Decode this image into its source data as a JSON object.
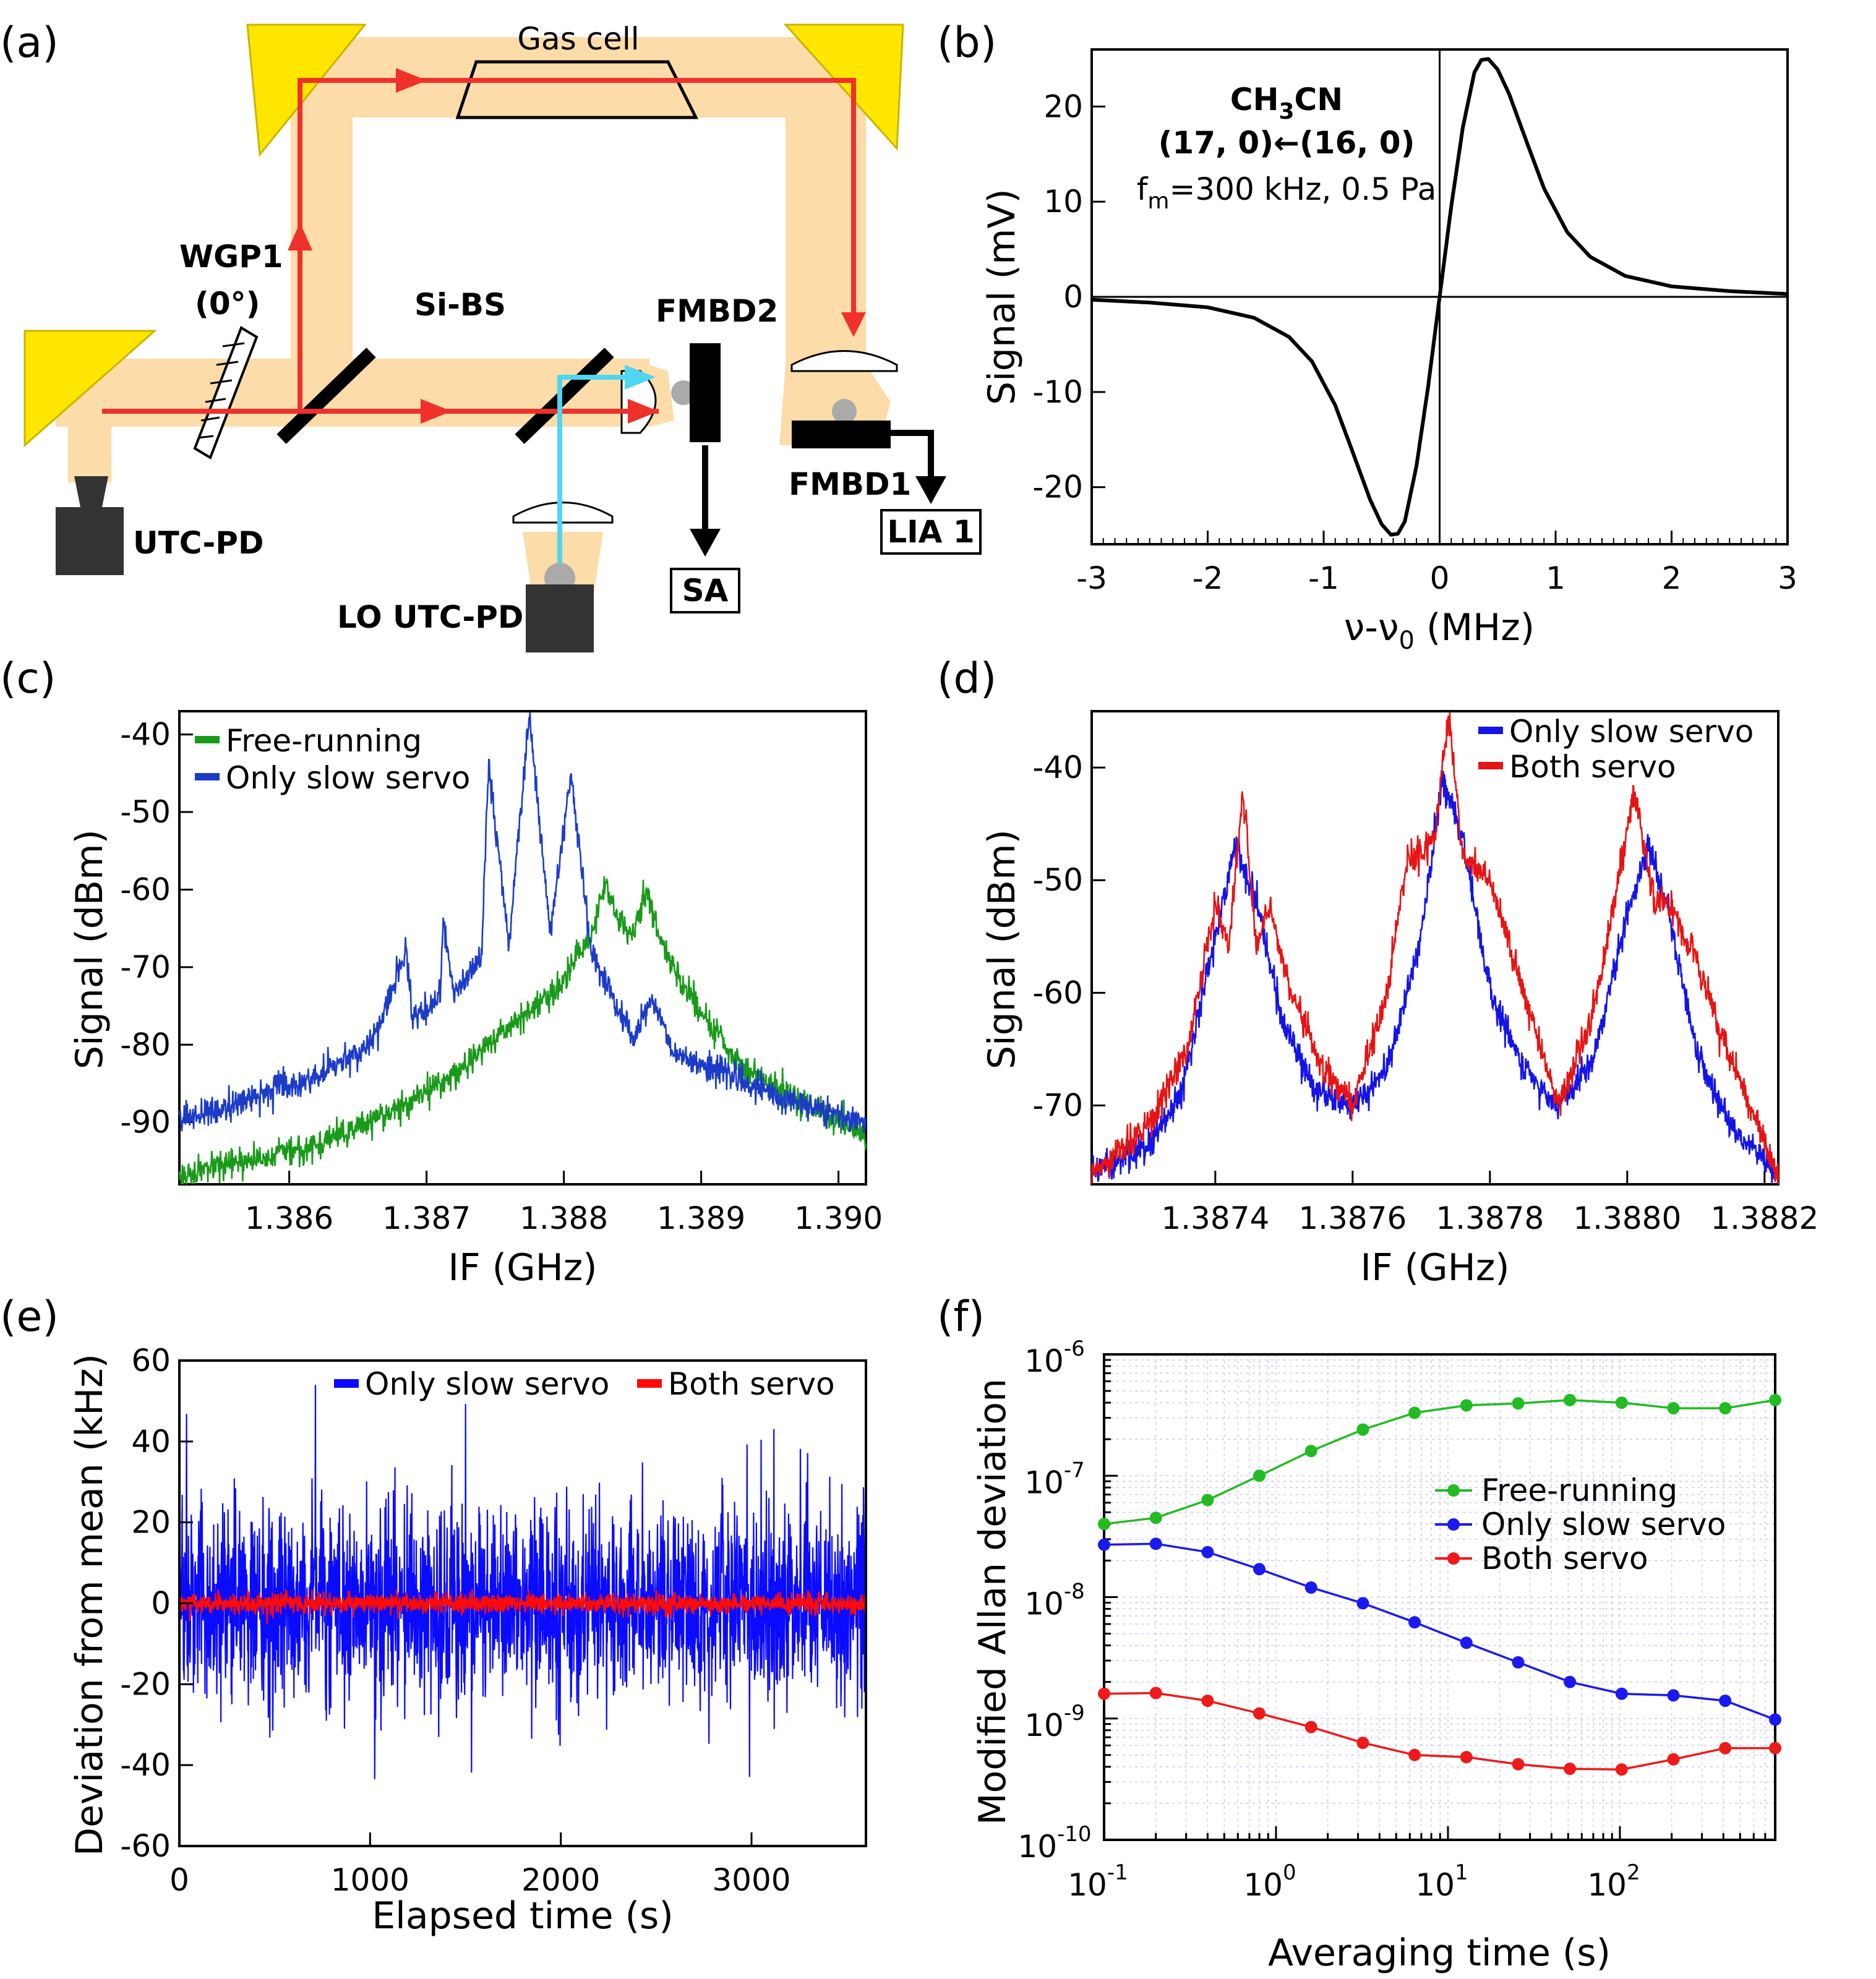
{
  "panels": {
    "a": "(a)",
    "b": "(b)",
    "c": "(c)",
    "d": "(d)",
    "e": "(e)",
    "f": "(f)"
  },
  "diagram": {
    "labels": {
      "gas_cell": "Gas cell",
      "wgp1": "WGP1",
      "wgp1_angle": "(0°)",
      "si_bs": "Si-BS",
      "fmbd2": "FMBD2",
      "fmbd1": "FMBD1",
      "utc_pd": "UTC-PD",
      "lo_utc_pd": "LO UTC-PD",
      "sa": "SA",
      "lia1": "LIA 1"
    },
    "colors": {
      "thz_beam": "#fcdca8",
      "red_beam": "#f0302a",
      "lo_beam": "#4fd6f0",
      "mirror": "#ffe600",
      "detector": "#333333"
    }
  },
  "chart_data": [
    {
      "id": "b",
      "type": "line",
      "title": "",
      "annotation": {
        "molecule_prefix": "CH",
        "molecule_sub": "3",
        "molecule_suffix": "CN",
        "transition": "(17, 0)←(16, 0)",
        "cond_prefix": "f",
        "cond_sub": "m",
        "cond_suffix": "=300 kHz, 0.5 Pa"
      },
      "xlabel": {
        "prefix": "ν-ν",
        "sub": "0",
        "suffix": " (MHz)"
      },
      "ylabel": "Signal (mV)",
      "xlim": [
        -3,
        3
      ],
      "ylim": [
        -26,
        26
      ],
      "xticks": [
        -3,
        -2,
        -1,
        0,
        1,
        2,
        3
      ],
      "xtick_labels": [
        "-3",
        "-2",
        "-1",
        "0",
        "1",
        "2",
        "3"
      ],
      "yticks": [
        -20,
        -10,
        0,
        10,
        20
      ],
      "ytick_labels": [
        "-20",
        "-10",
        "0",
        "10",
        "20"
      ],
      "series": [
        {
          "name": "signal",
          "color": "#000000",
          "x": [
            -3.0,
            -2.5,
            -2.0,
            -1.6,
            -1.3,
            -1.1,
            -0.9,
            -0.75,
            -0.6,
            -0.5,
            -0.42,
            -0.36,
            -0.3,
            -0.2,
            -0.1,
            0.0,
            0.1,
            0.2,
            0.3,
            0.36,
            0.42,
            0.5,
            0.6,
            0.75,
            0.9,
            1.1,
            1.3,
            1.6,
            2.0,
            2.5,
            3.0
          ],
          "y": [
            -0.3,
            -0.6,
            -1.1,
            -2.2,
            -4.2,
            -6.8,
            -11.4,
            -16.3,
            -21.3,
            -23.9,
            -25.0,
            -24.9,
            -23.6,
            -17.8,
            -9.5,
            0.0,
            9.5,
            17.8,
            23.6,
            24.9,
            25.0,
            23.9,
            21.3,
            16.3,
            11.4,
            6.8,
            4.2,
            2.2,
            1.1,
            0.6,
            0.3
          ]
        }
      ]
    },
    {
      "id": "c",
      "type": "line",
      "title": "",
      "xlabel": "IF (GHz)",
      "ylabel": "Signal (dBm)",
      "xlim": [
        1.3852,
        1.3902
      ],
      "ylim": [
        -98,
        -37
      ],
      "xticks": [
        1.386,
        1.387,
        1.388,
        1.389,
        1.39
      ],
      "xtick_labels": [
        "1.386",
        "1.387",
        "1.388",
        "1.389",
        "1.390"
      ],
      "yticks": [
        -90,
        -80,
        -70,
        -60,
        -50,
        -40
      ],
      "ytick_labels": [
        "-90",
        "-80",
        "-70",
        "-60",
        "-50",
        "-40"
      ],
      "legend_position": "top-left",
      "series": [
        {
          "name": "Free-running",
          "color": "#1a9a1a",
          "x": [
            1.3852,
            1.3857,
            1.3862,
            1.3867,
            1.3872,
            1.3875,
            1.3878,
            1.388,
            1.3881,
            1.3882,
            1.3883,
            1.3884,
            1.3885,
            1.3886,
            1.3887,
            1.3888,
            1.389,
            1.3893,
            1.3897,
            1.3902
          ],
          "y": [
            -97,
            -95,
            -93,
            -89,
            -84,
            -79,
            -75,
            -72,
            -68,
            -66,
            -59,
            -64,
            -66,
            -60,
            -66,
            -70,
            -76,
            -83,
            -87,
            -92
          ]
        },
        {
          "name": "Only slow servo",
          "color": "#1c3cc8",
          "x": [
            1.3852,
            1.3857,
            1.3862,
            1.3866,
            1.38685,
            1.3869,
            1.3871,
            1.38712,
            1.3872,
            1.3874,
            1.38745,
            1.3876,
            1.38775,
            1.3879,
            1.38805,
            1.3882,
            1.3885,
            1.38865,
            1.3888,
            1.3891,
            1.3896,
            1.3902
          ],
          "y": [
            -90,
            -87,
            -84,
            -80,
            -68,
            -77,
            -74,
            -64,
            -73,
            -69,
            -44,
            -67,
            -37,
            -66,
            -45,
            -68,
            -79,
            -74,
            -81,
            -83,
            -87,
            -90
          ]
        }
      ]
    },
    {
      "id": "d",
      "type": "line",
      "title": "",
      "xlabel": "IF (GHz)",
      "ylabel": "Signal (dBm)",
      "xlim": [
        1.38722,
        1.38822
      ],
      "ylim": [
        -77,
        -35
      ],
      "xticks": [
        1.3874,
        1.3876,
        1.3878,
        1.388,
        1.3882
      ],
      "xtick_labels": [
        "1.3874",
        "1.3876",
        "1.3878",
        "1.3880",
        "1.3882"
      ],
      "yticks": [
        -70,
        -60,
        -50,
        -40
      ],
      "ytick_labels": [
        "-70",
        "-60",
        "-50",
        "-40"
      ],
      "legend_position": "top-right",
      "series": [
        {
          "name": "Only slow servo",
          "color": "#1414e6",
          "x": [
            1.38722,
            1.3873,
            1.38735,
            1.3874,
            1.38743,
            1.38746,
            1.3875,
            1.38755,
            1.3876,
            1.38765,
            1.3877,
            1.38773,
            1.38776,
            1.3878,
            1.38785,
            1.3879,
            1.38795,
            1.388,
            1.38803,
            1.38806,
            1.3881,
            1.38815,
            1.38822
          ],
          "y": [
            -76,
            -74,
            -69,
            -55,
            -47,
            -52,
            -63,
            -69,
            -70,
            -67,
            -55,
            -41,
            -46,
            -60,
            -67,
            -70,
            -66,
            -53,
            -47,
            -53,
            -65,
            -72,
            -76
          ]
        },
        {
          "name": "Both servo",
          "color": "#e61414",
          "x": [
            1.38722,
            1.3873,
            1.38736,
            1.3874,
            1.38742,
            1.38744,
            1.38746,
            1.38748,
            1.3875,
            1.38755,
            1.3876,
            1.38765,
            1.38768,
            1.3877,
            1.38772,
            1.38774,
            1.38776,
            1.3878,
            1.38785,
            1.3879,
            1.38795,
            1.38798,
            1.38801,
            1.38804,
            1.38806,
            1.3881,
            1.38815,
            1.38822
          ],
          "y": [
            -76,
            -72,
            -65,
            -52,
            -56,
            -42,
            -56,
            -52,
            -58,
            -66,
            -70,
            -60,
            -48,
            -48,
            -46,
            -35,
            -48,
            -50,
            -60,
            -70,
            -62,
            -52,
            -42,
            -52,
            -52,
            -57,
            -66,
            -76
          ]
        }
      ]
    },
    {
      "id": "e",
      "type": "line",
      "title": "",
      "xlabel": "Elapsed time (s)",
      "ylabel": "Deviation from mean (kHz)",
      "xlim": [
        0,
        3600
      ],
      "ylim": [
        -60,
        60
      ],
      "xticks": [
        0,
        1000,
        2000,
        3000
      ],
      "xtick_labels": [
        "0",
        "1000",
        "2000",
        "3000"
      ],
      "yticks": [
        -60,
        -40,
        -20,
        0,
        20,
        40,
        60
      ],
      "ytick_labels": [
        "-60",
        "-40",
        "-20",
        "0",
        "20",
        "40",
        "60"
      ],
      "legend_position": "top",
      "series": [
        {
          "name": "Only slow servo",
          "color": "#0a0aff",
          "rms": 12,
          "peak": 54
        },
        {
          "name": "Both servo",
          "color": "#ff0a0a",
          "rms": 1.2,
          "peak": 6
        }
      ]
    },
    {
      "id": "f",
      "type": "scatter",
      "title": "",
      "xlabel": "Averaging time (s)",
      "ylabel": "Modified Allan deviation",
      "xscale": "log",
      "yscale": "log",
      "xlim": [
        0.1,
        800
      ],
      "ylim": [
        1e-10,
        1e-06
      ],
      "xtick_exponents": [
        "-1",
        "0",
        "1",
        "2"
      ],
      "ytick_exponents": [
        "-6",
        "-7",
        "-8",
        "-9",
        "-10"
      ],
      "legend_position": "right",
      "series": [
        {
          "name": "Free-running",
          "color": "#22bb22",
          "x": [
            0.1,
            0.2,
            0.4,
            0.8,
            1.6,
            3.2,
            6.4,
            12.8,
            25.6,
            51.2,
            102.4,
            204.8,
            409.6,
            800
          ],
          "y": [
            4e-08,
            4.5e-08,
            6.3e-08,
            1e-07,
            1.6e-07,
            2.4e-07,
            3.3e-07,
            3.8e-07,
            3.95e-07,
            4.2e-07,
            4e-07,
            3.6e-07,
            3.6e-07,
            4.2e-07
          ]
        },
        {
          "name": "Only slow servo",
          "color": "#1a1aee",
          "x": [
            0.1,
            0.2,
            0.4,
            0.8,
            1.6,
            3.2,
            6.4,
            12.8,
            25.6,
            51.2,
            102.4,
            204.8,
            409.6,
            800
          ],
          "y": [
            2.7e-08,
            2.75e-08,
            2.35e-08,
            1.7e-08,
            1.2e-08,
            8.9e-09,
            6.2e-09,
            4.2e-09,
            2.9e-09,
            2e-09,
            1.6e-09,
            1.55e-09,
            1.4e-09,
            9.8e-10
          ]
        },
        {
          "name": "Both servo",
          "color": "#ee1a1a",
          "x": [
            0.1,
            0.2,
            0.4,
            0.8,
            1.6,
            3.2,
            6.4,
            12.8,
            25.6,
            51.2,
            102.4,
            204.8,
            409.6,
            800
          ],
          "y": [
            1.6e-09,
            1.62e-09,
            1.4e-09,
            1.1e-09,
            8.5e-10,
            6.3e-10,
            5e-10,
            4.8e-10,
            4.2e-10,
            3.85e-10,
            3.8e-10,
            4.6e-10,
            5.7e-10,
            5.7e-10
          ]
        }
      ]
    }
  ]
}
